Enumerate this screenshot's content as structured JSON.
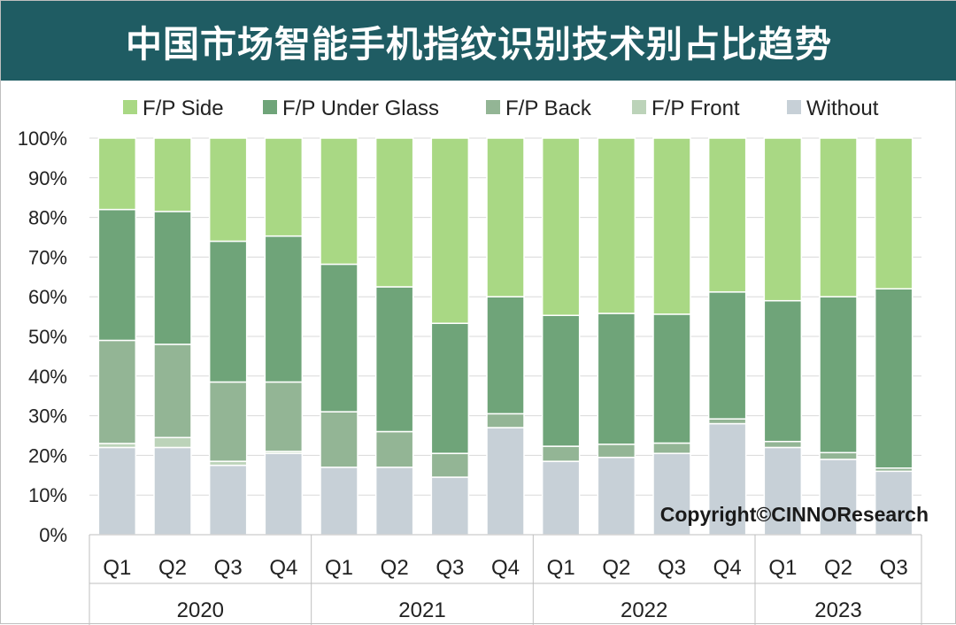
{
  "title": "中国市场智能手机指纹识别技术别占比趋势",
  "copyright": "Copyright©CINNOResearch",
  "colors": {
    "title_bg": "#1f5c63",
    "F/P Side": "#a9d884",
    "F/P Under Glass": "#6fa479",
    "F/P Back": "#93b595",
    "F/P Front": "#bcd3b9",
    "Without": "#c7d0d7"
  },
  "chart_data": {
    "type": "bar",
    "stacked": true,
    "percent": true,
    "ylim": [
      0,
      100
    ],
    "yticks": [
      "0%",
      "10%",
      "20%",
      "30%",
      "40%",
      "50%",
      "60%",
      "70%",
      "80%",
      "90%",
      "100%"
    ],
    "legend_position": "top",
    "categories": [
      "Q1",
      "Q2",
      "Q3",
      "Q4",
      "Q1",
      "Q2",
      "Q3",
      "Q4",
      "Q1",
      "Q2",
      "Q3",
      "Q4",
      "Q1",
      "Q2",
      "Q3"
    ],
    "groups": [
      {
        "label": "2020",
        "count": 4
      },
      {
        "label": "2021",
        "count": 4
      },
      {
        "label": "2022",
        "count": 4
      },
      {
        "label": "2023",
        "count": 3
      }
    ],
    "series": [
      {
        "name": "Without",
        "values": [
          22.0,
          22.0,
          17.5,
          20.5,
          17.0,
          17.0,
          14.5,
          27.0,
          18.5,
          19.5,
          20.5,
          28.0,
          22.0,
          19.0,
          16.0
        ]
      },
      {
        "name": "F/P Front",
        "values": [
          1.0,
          2.5,
          1.0,
          0.5,
          0.0,
          0.0,
          0.0,
          0.0,
          0.0,
          0.0,
          0.0,
          0.0,
          0.0,
          0.0,
          0.0
        ]
      },
      {
        "name": "F/P Back",
        "values": [
          26.0,
          23.5,
          20.0,
          17.5,
          14.0,
          9.0,
          6.0,
          3.5,
          3.8,
          3.3,
          2.6,
          1.2,
          1.5,
          1.7,
          0.8
        ]
      },
      {
        "name": "F/P Under Glass",
        "values": [
          33.0,
          33.5,
          35.5,
          36.8,
          37.2,
          36.5,
          32.8,
          29.5,
          33.0,
          33.0,
          32.5,
          32.0,
          35.5,
          39.3,
          45.2
        ]
      },
      {
        "name": "F/P Side",
        "values": [
          18.0,
          18.5,
          26.0,
          24.7,
          31.8,
          37.5,
          46.7,
          40.0,
          44.7,
          44.2,
          44.4,
          38.8,
          41.0,
          40.0,
          38.0
        ]
      }
    ]
  },
  "legend": {
    "items": [
      "F/P Side",
      "F/P Under Glass",
      "F/P Back",
      "F/P Front",
      "Without"
    ]
  }
}
